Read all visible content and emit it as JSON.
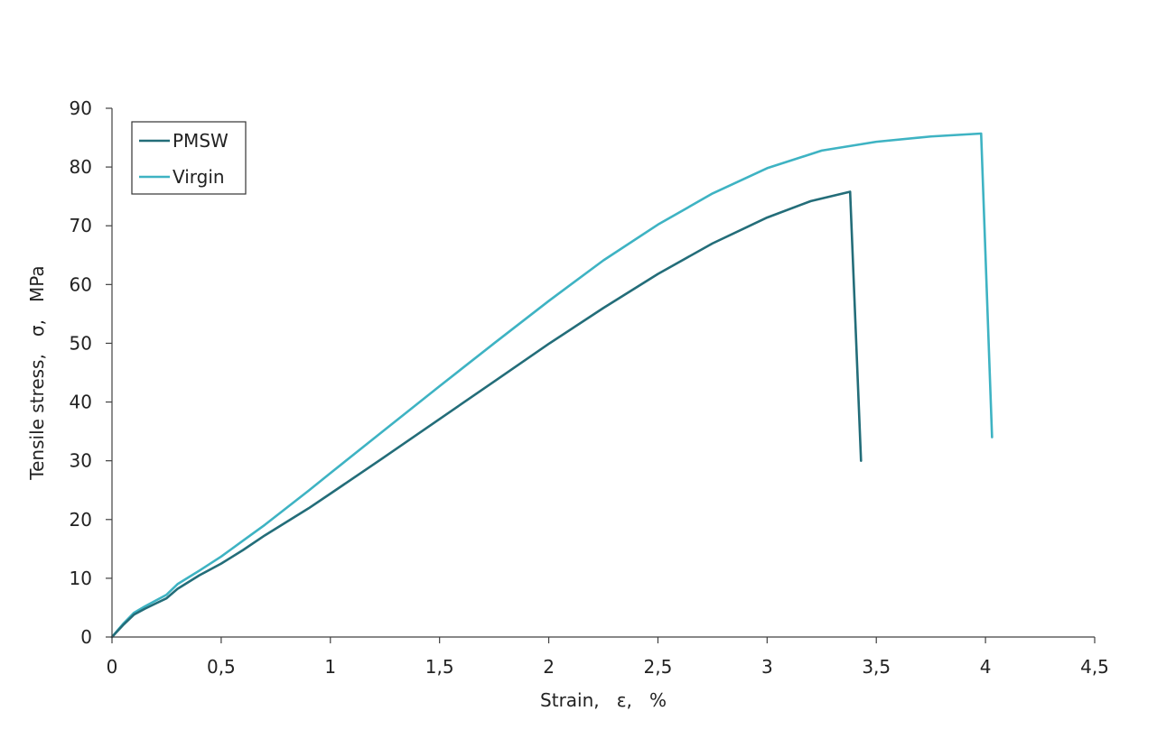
{
  "chart_data": {
    "type": "line",
    "xlabel": "Strain,   ε,   %",
    "ylabel": "Tensile stress,   σ,   MPa",
    "xlim": [
      0,
      4.5
    ],
    "ylim": [
      0,
      90
    ],
    "x_ticks": [
      0,
      0.5,
      1,
      1.5,
      2,
      2.5,
      3,
      3.5,
      4,
      4.5
    ],
    "x_tick_labels": [
      "0",
      "0,5",
      "1",
      "1,5",
      "2",
      "2,5",
      "3",
      "3,5",
      "4",
      "4,5"
    ],
    "y_ticks": [
      0,
      10,
      20,
      30,
      40,
      50,
      60,
      70,
      80,
      90
    ],
    "y_tick_labels": [
      "0",
      "10",
      "20",
      "30",
      "40",
      "50",
      "60",
      "70",
      "80",
      "90"
    ],
    "grid": false,
    "legend_position": "top-left",
    "series": [
      {
        "name": "PMSW",
        "color": "#236d79",
        "points": [
          [
            0,
            0
          ],
          [
            0.05,
            2
          ],
          [
            0.1,
            3.8
          ],
          [
            0.15,
            4.8
          ],
          [
            0.2,
            5.7
          ],
          [
            0.25,
            6.6
          ],
          [
            0.3,
            8.2
          ],
          [
            0.4,
            10.5
          ],
          [
            0.5,
            12.5
          ],
          [
            0.6,
            14.8
          ],
          [
            0.7,
            17.3
          ],
          [
            0.8,
            19.6
          ],
          [
            0.9,
            21.9
          ],
          [
            1.0,
            24.4
          ],
          [
            1.25,
            30.7
          ],
          [
            1.5,
            37.1
          ],
          [
            1.75,
            43.5
          ],
          [
            2.0,
            49.9
          ],
          [
            2.25,
            56.0
          ],
          [
            2.5,
            61.8
          ],
          [
            2.75,
            67.0
          ],
          [
            3.0,
            71.4
          ],
          [
            3.2,
            74.2
          ],
          [
            3.38,
            75.8
          ],
          [
            3.43,
            30
          ]
        ]
      },
      {
        "name": "Virgin",
        "color": "#3eb3c3",
        "points": [
          [
            0,
            0
          ],
          [
            0.05,
            2.2
          ],
          [
            0.1,
            4.1
          ],
          [
            0.15,
            5.2
          ],
          [
            0.2,
            6.2
          ],
          [
            0.25,
            7.2
          ],
          [
            0.3,
            9.0
          ],
          [
            0.4,
            11.3
          ],
          [
            0.5,
            13.7
          ],
          [
            0.6,
            16.4
          ],
          [
            0.7,
            19.1
          ],
          [
            0.8,
            22.0
          ],
          [
            0.9,
            24.9
          ],
          [
            1.0,
            27.9
          ],
          [
            1.25,
            35.3
          ],
          [
            1.5,
            42.7
          ],
          [
            1.75,
            50.0
          ],
          [
            2.0,
            57.2
          ],
          [
            2.25,
            64.1
          ],
          [
            2.5,
            70.2
          ],
          [
            2.75,
            75.5
          ],
          [
            3.0,
            79.8
          ],
          [
            3.25,
            82.8
          ],
          [
            3.5,
            84.3
          ],
          [
            3.75,
            85.2
          ],
          [
            3.98,
            85.7
          ],
          [
            4.03,
            34
          ]
        ]
      }
    ]
  }
}
